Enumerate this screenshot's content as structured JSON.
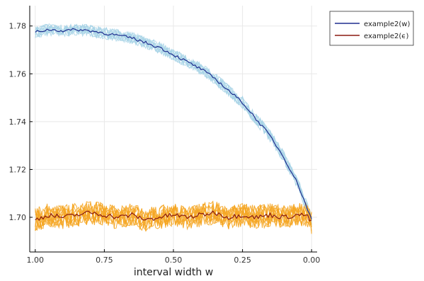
{
  "chart_data": {
    "type": "line",
    "title": "",
    "xlabel": "interval width w",
    "ylabel": "",
    "xlim": [
      1.02,
      -0.02
    ],
    "ylim": [
      1.6855,
      1.7885
    ],
    "x_reversed": true,
    "xticks": [
      1.0,
      0.75,
      0.5,
      0.25,
      0.0
    ],
    "xtick_labels": [
      "1.00",
      "0.75",
      "0.50",
      "0.25",
      "0.00"
    ],
    "yticks": [
      1.7,
      1.72,
      1.74,
      1.76,
      1.78
    ],
    "ytick_labels": [
      "1.70",
      "1.72",
      "1.74",
      "1.76",
      "1.78"
    ],
    "grid": true,
    "legend_position": "top-right-outside",
    "colors": {
      "w_mean": "#1f2f8f",
      "w_runs": "#a8d4e6",
      "eps_mean": "#8b1a10",
      "eps_runs": "#f5a623"
    },
    "series": [
      {
        "name": "example2(w)",
        "x": [
          1.0,
          0.95,
          0.9,
          0.85,
          0.8,
          0.75,
          0.7,
          0.65,
          0.6,
          0.55,
          0.5,
          0.45,
          0.4,
          0.35,
          0.3,
          0.25,
          0.2,
          0.15,
          0.1,
          0.05,
          0.02,
          0.0
        ],
        "values": [
          1.7775,
          1.7785,
          1.778,
          1.7785,
          1.778,
          1.777,
          1.776,
          1.775,
          1.773,
          1.771,
          1.768,
          1.765,
          1.762,
          1.758,
          1.753,
          1.748,
          1.741,
          1.734,
          1.725,
          1.714,
          1.705,
          1.699
        ]
      },
      {
        "name": "example2(ϵ)",
        "x": [
          1.0,
          0.95,
          0.9,
          0.85,
          0.8,
          0.75,
          0.7,
          0.65,
          0.6,
          0.55,
          0.5,
          0.45,
          0.4,
          0.35,
          0.3,
          0.25,
          0.2,
          0.15,
          0.1,
          0.05,
          0.02,
          0.0
        ],
        "values": [
          1.699,
          1.701,
          1.7,
          1.701,
          1.702,
          1.701,
          1.7,
          1.701,
          1.699,
          1.7,
          1.701,
          1.7,
          1.701,
          1.702,
          1.7,
          1.701,
          1.7,
          1.701,
          1.7,
          1.701,
          1.701,
          1.698
        ]
      }
    ],
    "runs": {
      "count": 10,
      "w_spread": 0.0025,
      "eps_spread": 0.005
    }
  }
}
